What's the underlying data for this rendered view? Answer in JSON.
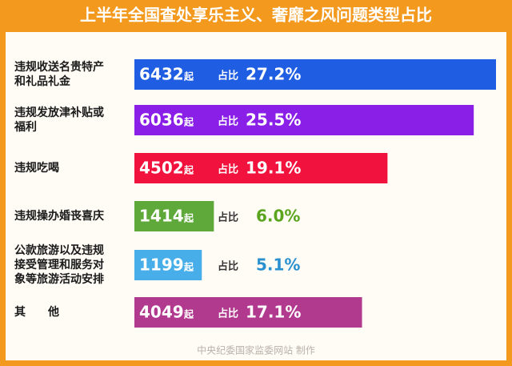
{
  "chart_data": {
    "type": "bar",
    "orientation": "horizontal",
    "title": "上半年全国查处享乐主义、奢靡之风问题类型占比",
    "categories": [
      "违规收送名贵特产和礼品礼金",
      "违规发放津补贴或福利",
      "违规吃喝",
      "违规操办婚丧喜庆",
      "公款旅游以及违规接受管理和服务对象等旅游活动安排",
      "其　　他"
    ],
    "values": [
      6432,
      6036,
      4502,
      1414,
      1199,
      4049
    ],
    "unit": "起",
    "share_label": "占比",
    "shares": [
      27.2,
      25.5,
      19.1,
      6.0,
      5.1,
      17.1
    ],
    "share_labels": [
      "27.2%",
      "25.5%",
      "19.1%",
      "6.0%",
      "5.1%",
      "17.1%"
    ],
    "colors": [
      "#1f5de2",
      "#8a20e8",
      "#f1133d",
      "#5fa93b",
      "#47aee9",
      "#b13a8f"
    ],
    "share_outside_colors": [
      "#1f5de2",
      "#8a20e8",
      "#f1133d",
      "#5aa51d",
      "#2a90d0",
      "#b13a8f"
    ],
    "xlim": [
      0,
      6432
    ],
    "footer": "中央纪委国家监委网站 制作"
  }
}
